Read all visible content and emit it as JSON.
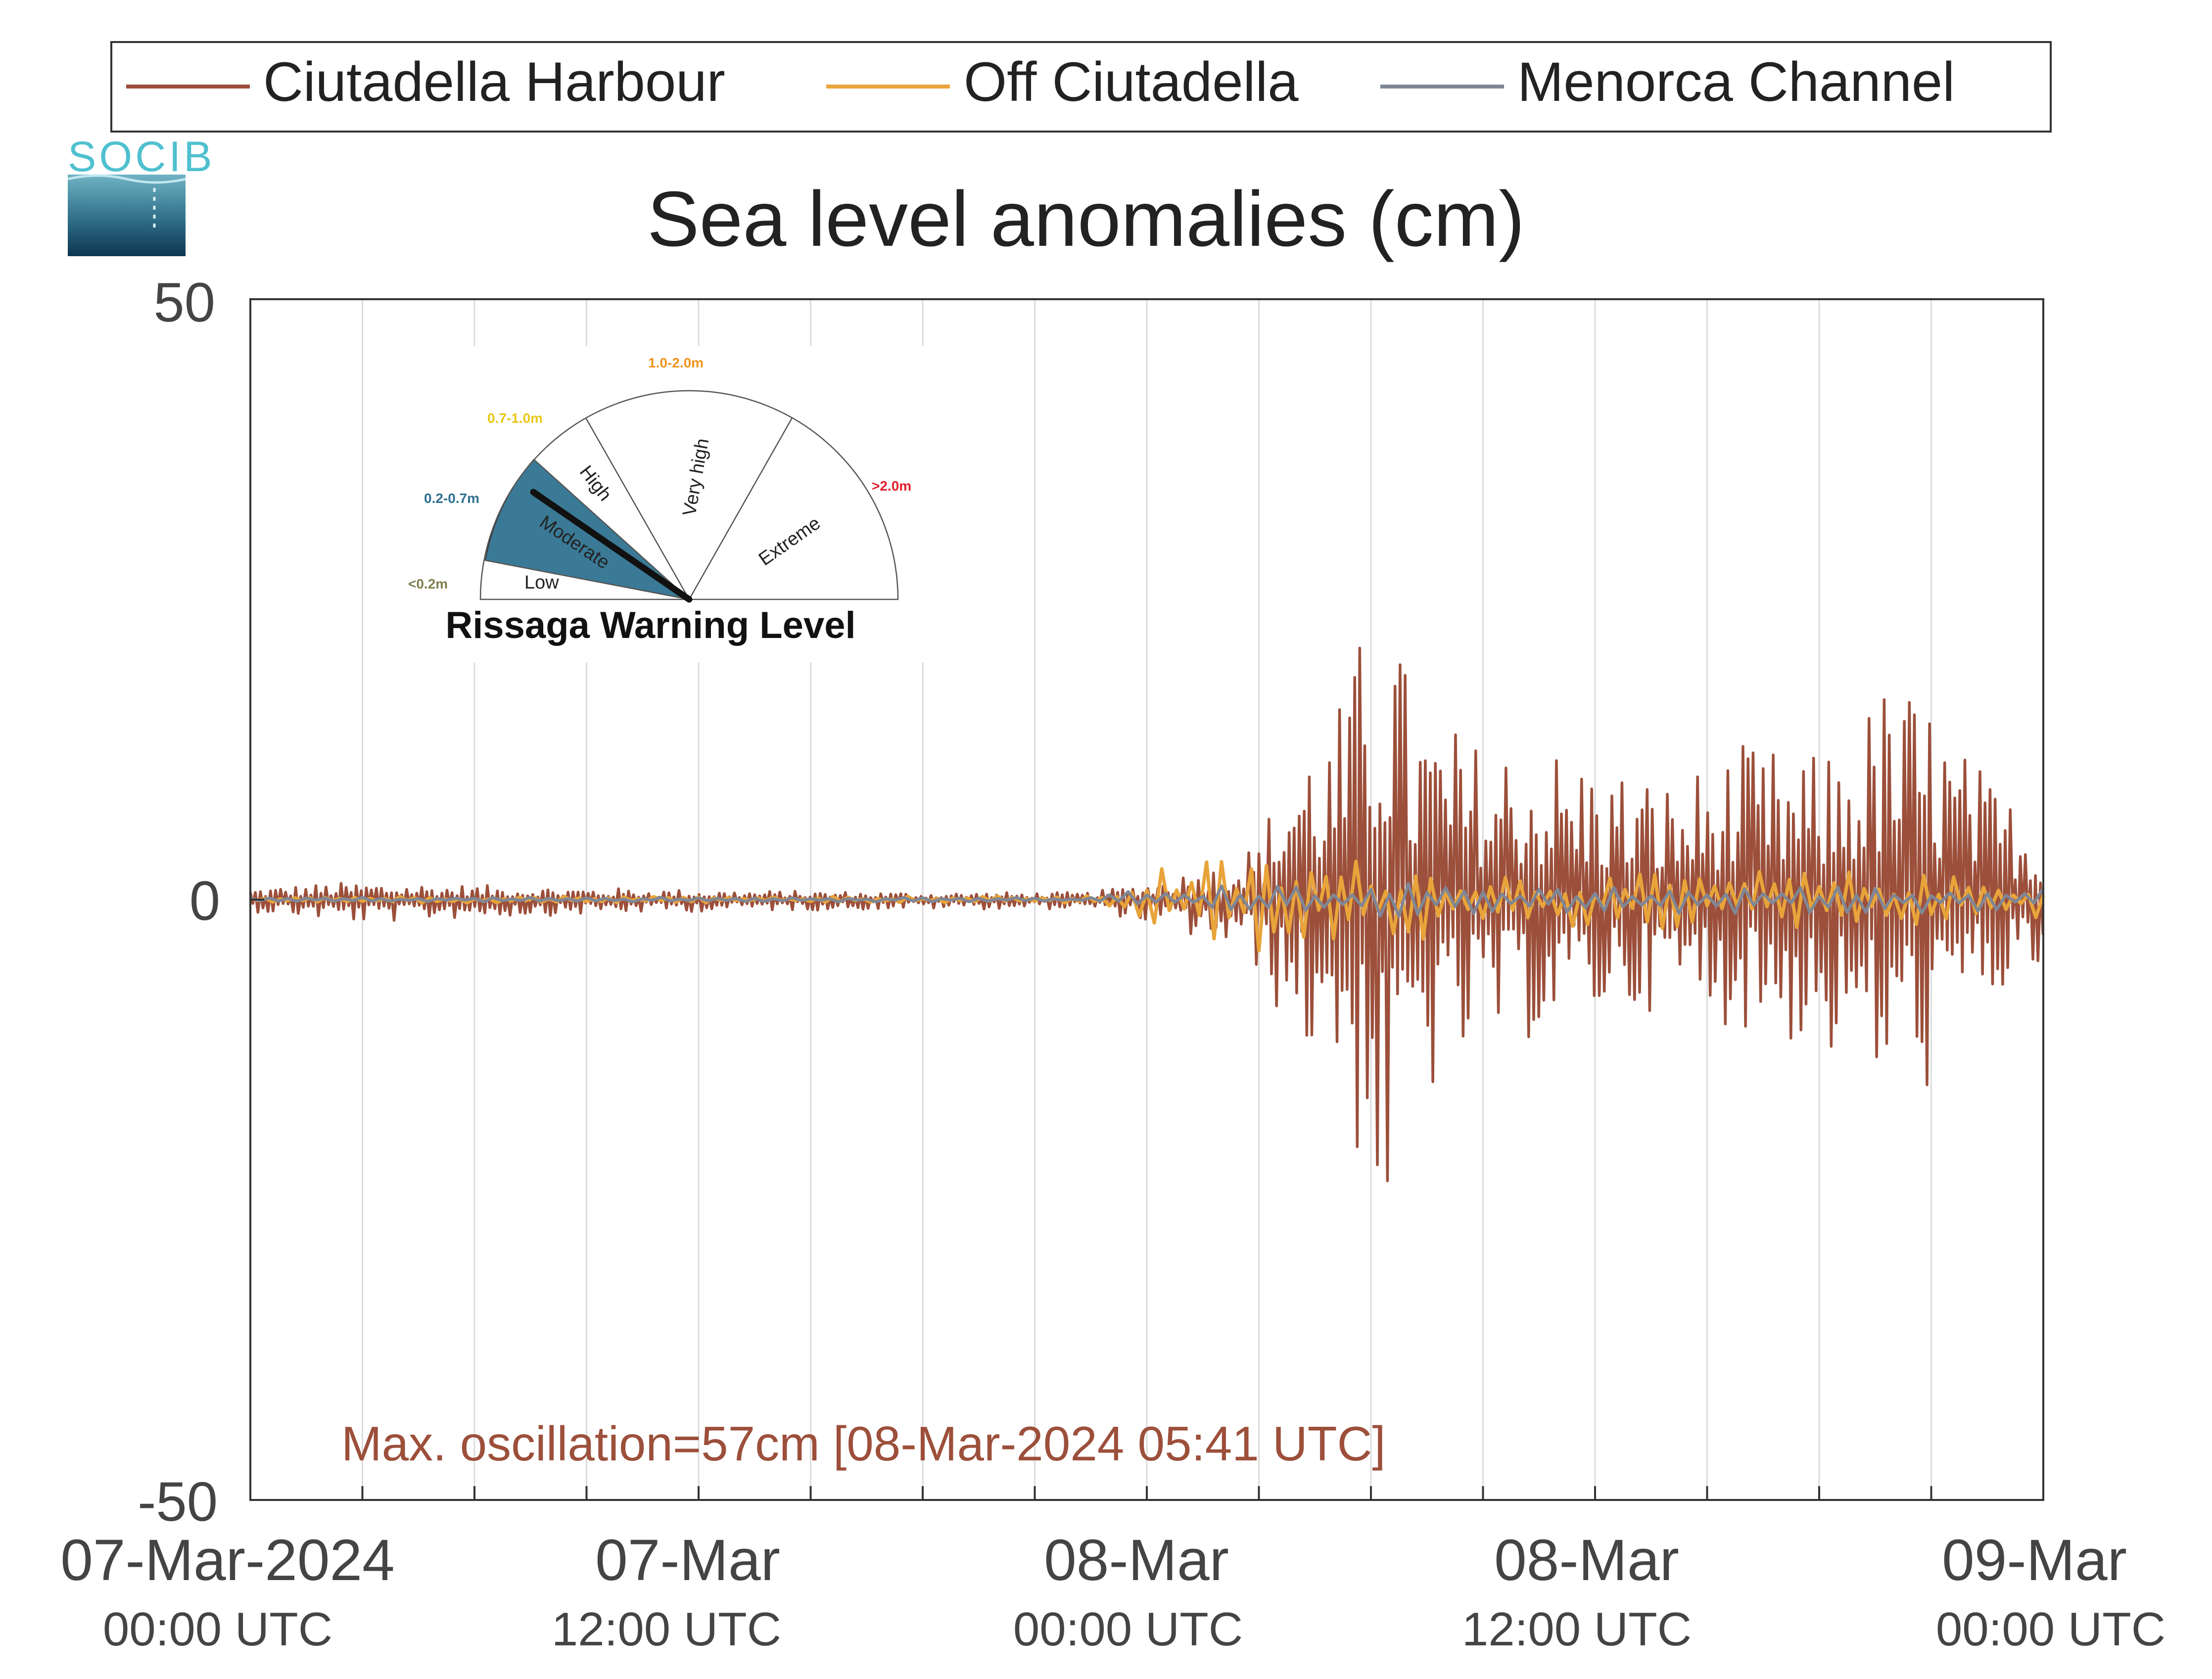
{
  "logo": {
    "text": "SOCIB",
    "color": "#4fc0cf"
  },
  "legend": [
    {
      "label": "Ciutadella Harbour",
      "color": "#9c4f3a"
    },
    {
      "label": "Off Ciutadella",
      "color": "#e8a43a"
    },
    {
      "label": "Menorca Channel",
      "color": "#7f8796"
    }
  ],
  "warning_gauge": {
    "title": "Rissaga Warning Level",
    "current_level": "Moderate",
    "sectors": [
      {
        "name": "Low",
        "range": "<0.2m",
        "range_color": "#7f7f4f"
      },
      {
        "name": "Moderate",
        "range": "0.2-0.7m",
        "range_color": "#2f6f8f",
        "fill": "#3b7a96"
      },
      {
        "name": "High",
        "range": "0.7-1.0m",
        "range_color": "#e8c81a"
      },
      {
        "name": "Very high",
        "range": "1.0-2.0m",
        "range_color": "#f0941e"
      },
      {
        "name": "Extreme",
        "range": ">2.0m",
        "range_color": "#e0202a"
      }
    ]
  },
  "annotation": {
    "text": "Max. oscillation=57cm [08-Mar-2024 05:41 UTC]",
    "color": "#9c4f3a"
  },
  "chart_data": {
    "type": "line",
    "title": "Sea level anomalies (cm)",
    "xlabel": "",
    "ylabel": "",
    "ylim": [
      -50,
      50
    ],
    "xlim_hours": [
      0,
      48
    ],
    "x_tick_labels": [
      {
        "hour": 0,
        "date": "07-Mar-2024",
        "time": "00:00 UTC"
      },
      {
        "hour": 12,
        "date": "07-Mar",
        "time": "12:00 UTC"
      },
      {
        "hour": 24,
        "date": "08-Mar",
        "time": "00:00 UTC"
      },
      {
        "hour": 36,
        "date": "08-Mar",
        "time": "12:00 UTC"
      },
      {
        "hour": 48,
        "date": "09-Mar",
        "time": "00:00 UTC"
      }
    ],
    "y_ticks": [
      50,
      0,
      -50
    ],
    "grid": "vertical lines every 3 hours",
    "legend_position": "top",
    "series": [
      {
        "name": "Ciutadella Harbour",
        "color": "#9c4f3a",
        "envelope_hours": [
          0,
          3,
          6,
          12,
          18,
          22.5,
          24,
          26,
          27,
          28,
          29,
          30,
          30.5,
          31,
          32,
          33,
          34,
          36,
          38,
          40,
          42,
          44,
          45,
          46,
          48
        ],
        "envelope_max_cm": [
          1,
          1.5,
          1.2,
          0.8,
          0.6,
          0.6,
          1.5,
          3,
          5,
          14,
          15,
          25,
          28,
          18,
          15,
          13,
          14,
          12,
          10,
          13,
          12,
          19,
          17,
          12,
          6
        ],
        "envelope_min_cm": [
          -1,
          -2,
          -1.5,
          -1,
          -0.8,
          -0.8,
          -2,
          -4,
          -6,
          -13,
          -14,
          -26,
          -30,
          -18,
          -16,
          -13,
          -12,
          -10,
          -9,
          -11,
          -13,
          -17,
          -16,
          -10,
          -6
        ]
      },
      {
        "name": "Off Ciutadella",
        "color": "#e8a43a",
        "envelope_hours": [
          0,
          22.5,
          23.5,
          24,
          26,
          28,
          30,
          32,
          34,
          36,
          38,
          40,
          42,
          44,
          46,
          48
        ],
        "envelope_max_cm": [
          0.3,
          0.3,
          1.2,
          3,
          3.5,
          3.5,
          3.5,
          3,
          2.5,
          2,
          2.2,
          2.5,
          2.5,
          2.2,
          2,
          1.5
        ],
        "envelope_min_cm": [
          -0.3,
          -0.3,
          -1.2,
          -3,
          -4.5,
          -4.5,
          -4,
          -3.5,
          -2.8,
          -2.5,
          -2.5,
          -2.5,
          -2.5,
          -2.2,
          -2,
          -1.5
        ]
      },
      {
        "name": "Menorca Channel",
        "color": "#7f8796",
        "envelope_hours": [
          0,
          22.5,
          24,
          26,
          28,
          30,
          32,
          34,
          36,
          38,
          40,
          42,
          44,
          46,
          48
        ],
        "envelope_max_cm": [
          0.2,
          0.2,
          1,
          1.2,
          1.4,
          1.5,
          1.4,
          1.3,
          1.2,
          1.2,
          1.2,
          1.2,
          1.2,
          1.1,
          1
        ],
        "envelope_min_cm": [
          -0.2,
          -0.2,
          -1,
          -1.2,
          -1.4,
          -1.5,
          -1.4,
          -1.3,
          -1.2,
          -1.2,
          -1.2,
          -1.2,
          -1.2,
          -1.1,
          -1
        ]
      }
    ]
  }
}
